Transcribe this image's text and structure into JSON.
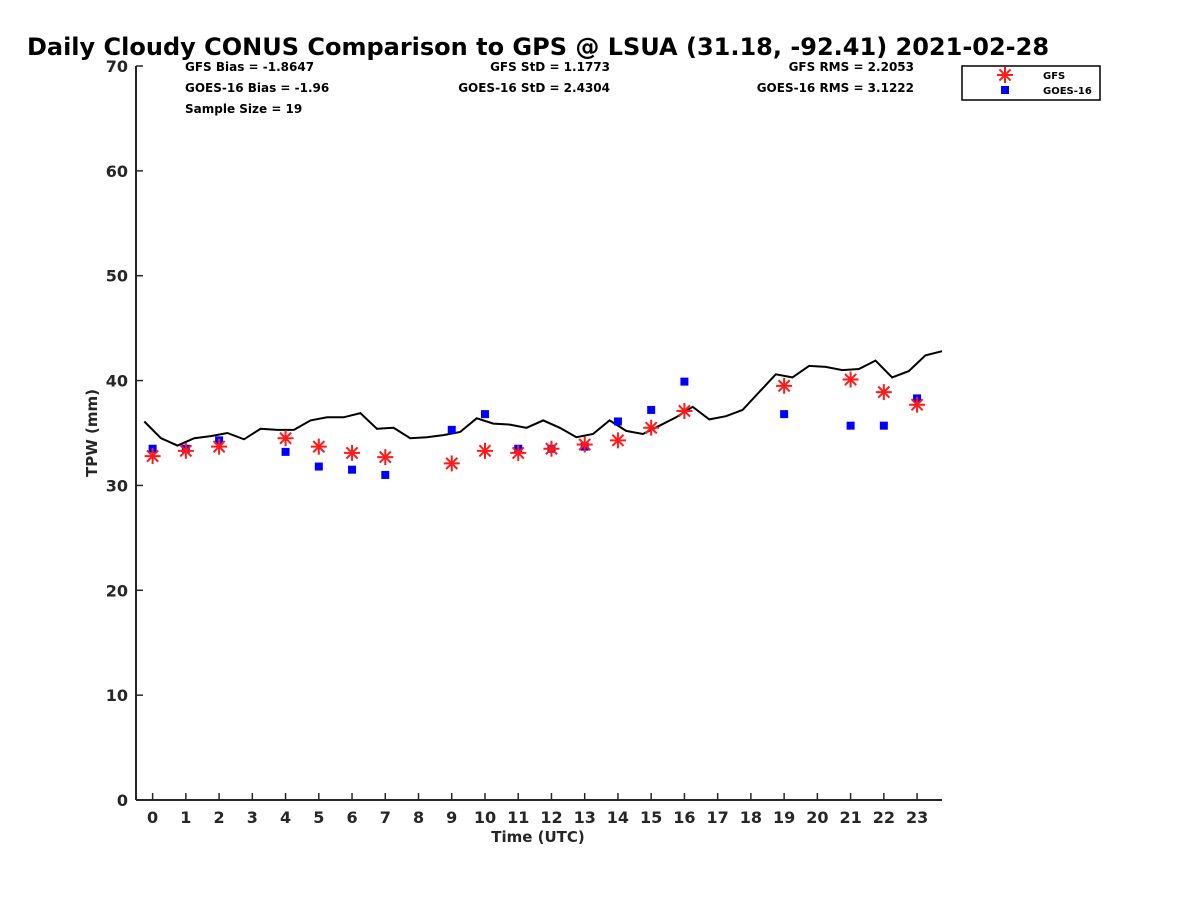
{
  "chart_data": {
    "type": "line",
    "title": "Daily Cloudy CONUS Comparison to GPS @ LSUA (31.18, -92.41) 2021-02-28",
    "xlabel": "Time (UTC)",
    "ylabel": "TPW (mm)",
    "xlim": [
      -0.5,
      23.75
    ],
    "ylim": [
      0,
      70
    ],
    "xticks": [
      0,
      1,
      2,
      3,
      4,
      5,
      6,
      7,
      8,
      9,
      10,
      11,
      12,
      13,
      14,
      15,
      16,
      17,
      18,
      19,
      20,
      21,
      22,
      23
    ],
    "yticks": [
      0,
      10,
      20,
      30,
      40,
      50,
      60,
      70
    ],
    "grid": false,
    "legend_position": "top-right",
    "stats": {
      "gfs_bias": "GFS Bias = -1.8647",
      "goes_bias": "GOES-16 Bias = -1.96",
      "sample_size": "Sample Size = 19",
      "gfs_std": "GFS StD = 1.1773",
      "goes_std": "GOES-16 StD = 2.4304",
      "gfs_rms": "GFS RMS = 2.2053",
      "goes_rms": "GOES-16 RMS = 3.1222"
    },
    "series": [
      {
        "kind": "line",
        "color": "#000000",
        "x": [
          -0.25,
          0.25,
          0.75,
          1.25,
          1.75,
          2.25,
          2.75,
          3.25,
          3.75,
          4.25,
          4.75,
          5.25,
          5.75,
          6.25,
          6.75,
          7.25,
          7.75,
          8.25,
          8.75,
          9.25,
          9.75,
          10.25,
          10.75,
          11.25,
          11.75,
          12.25,
          12.75,
          13.25,
          13.75,
          14.25,
          14.75,
          15.25,
          15.75,
          16.25,
          16.75,
          17.25,
          17.75,
          18.25,
          18.75,
          19.25,
          19.75,
          20.25,
          20.75,
          21.25,
          21.75,
          22.25,
          22.75,
          23.25,
          23.75
        ],
        "y": [
          36.1,
          34.5,
          33.8,
          34.5,
          34.7,
          35.0,
          34.4,
          35.4,
          35.3,
          35.3,
          36.2,
          36.5,
          36.5,
          36.9,
          35.4,
          35.5,
          34.5,
          34.6,
          34.8,
          35.1,
          36.4,
          35.9,
          35.8,
          35.5,
          36.2,
          35.5,
          34.6,
          34.9,
          36.2,
          35.2,
          34.9,
          35.7,
          36.5,
          37.5,
          36.3,
          36.6,
          37.2,
          38.9,
          40.6,
          40.3,
          41.4,
          41.3,
          41.0,
          41.1,
          41.9,
          40.3,
          40.9,
          42.4,
          42.8
        ]
      },
      {
        "name": "GFS",
        "kind": "marker",
        "marker": "asterisk",
        "color": "#ff1a1a",
        "x": [
          0,
          1,
          2,
          4,
          5,
          6,
          7,
          9,
          10,
          11,
          12,
          13,
          14,
          15,
          16,
          19,
          21,
          22,
          23
        ],
        "y": [
          32.8,
          33.3,
          33.7,
          34.5,
          33.7,
          33.1,
          32.7,
          32.1,
          33.3,
          33.1,
          33.5,
          33.9,
          34.3,
          35.5,
          37.1,
          39.5,
          40.1,
          38.9,
          37.7
        ]
      },
      {
        "name": "GOES-16",
        "kind": "marker",
        "marker": "square",
        "color": "#0000ff",
        "x": [
          0,
          1,
          2,
          4,
          5,
          6,
          7,
          9,
          10,
          11,
          12,
          13,
          14,
          15,
          16,
          19,
          21,
          22,
          23
        ],
        "y": [
          33.5,
          33.5,
          34.3,
          33.2,
          31.8,
          31.5,
          31.0,
          35.3,
          36.8,
          33.5,
          33.5,
          33.7,
          36.1,
          37.2,
          39.9,
          36.8,
          35.7,
          35.7,
          38.3
        ]
      }
    ]
  }
}
